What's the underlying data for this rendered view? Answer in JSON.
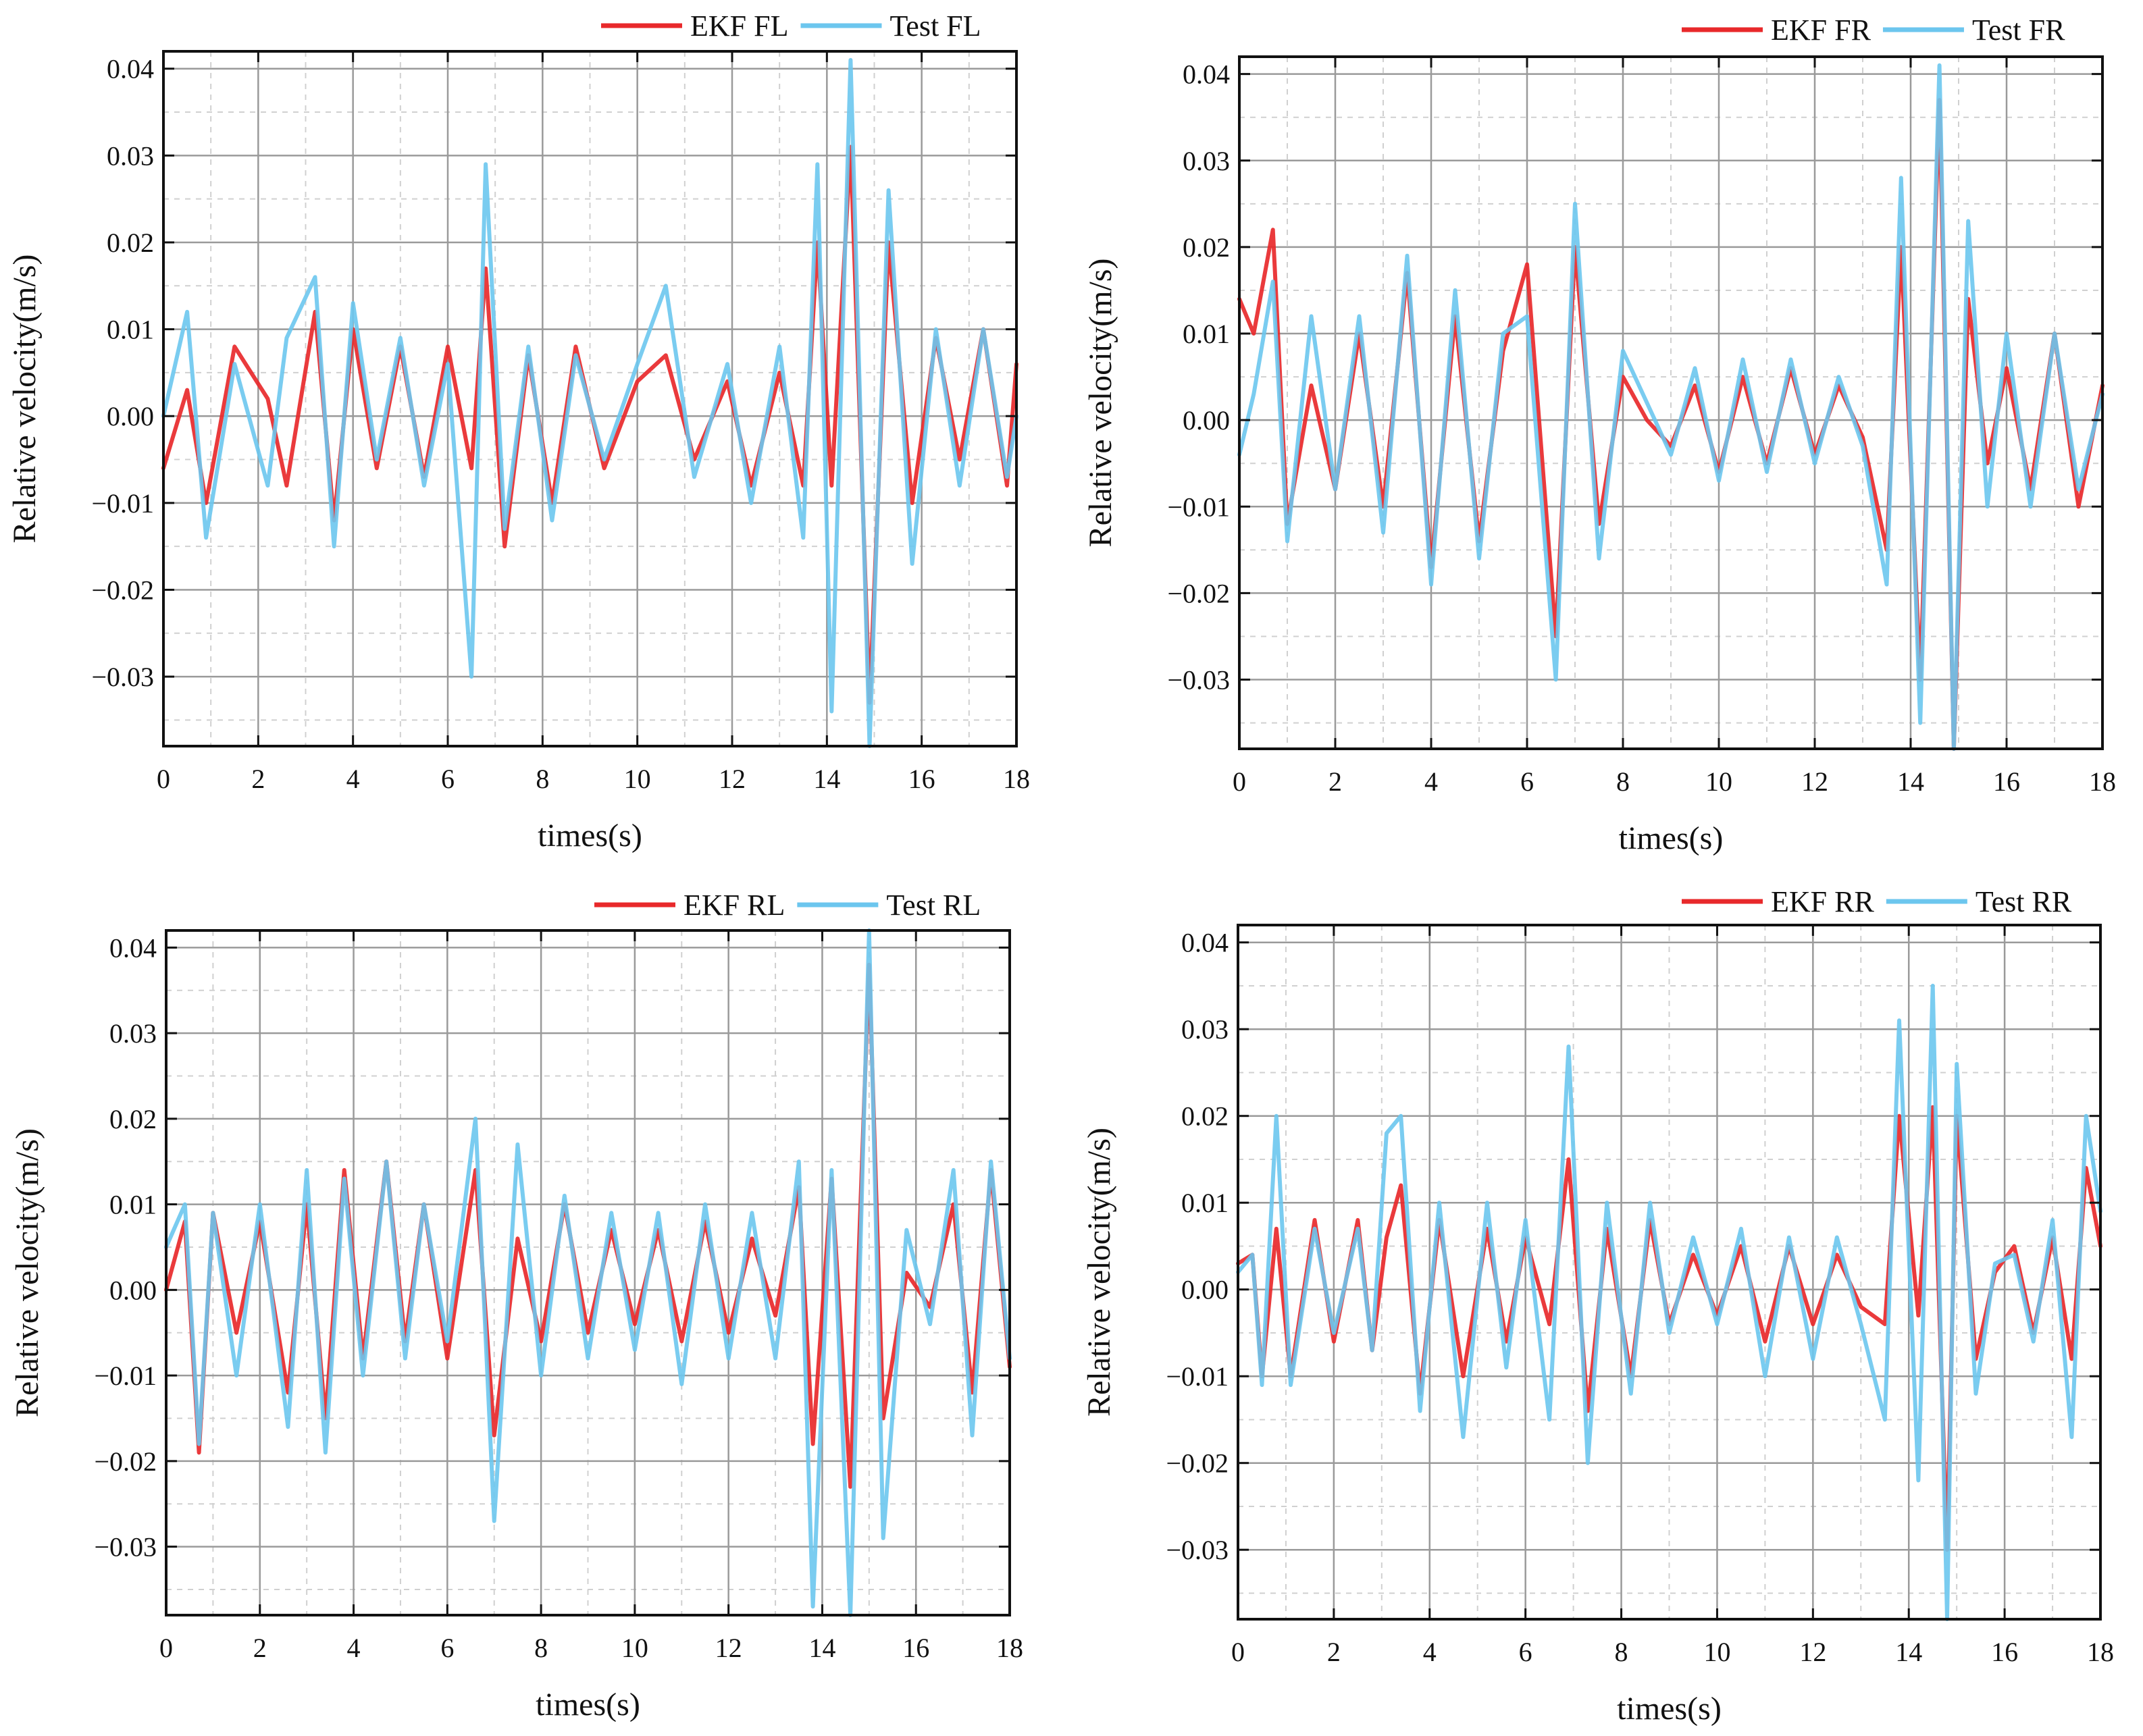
{
  "colors": {
    "ekf": "#e8292b",
    "test": "#6cc6ee",
    "axis": "#111111",
    "grid_major": "#9a9a9a",
    "grid_minor": "#d0d0d0"
  },
  "chart_data": [
    {
      "type": "line",
      "panel": "FL",
      "legend_position": "top-right",
      "xlabel": "times(s)",
      "ylabel": "Relative velocity(m/s)",
      "xlim": [
        0,
        18
      ],
      "ylim": [
        -0.038,
        0.042
      ],
      "xticks": [
        0,
        2,
        4,
        6,
        8,
        10,
        12,
        14,
        16,
        18
      ],
      "xtick_labels": [
        "0",
        "2",
        "4",
        "6",
        "8",
        "10",
        "12",
        "14",
        "16",
        "18"
      ],
      "yticks": [
        -0.03,
        -0.02,
        -0.01,
        0,
        0.01,
        0.02,
        0.03,
        0.04
      ],
      "ytick_labels": [
        "−0.03",
        "−0.02",
        "−0.01",
        "0.00",
        "0.01",
        "0.02",
        "0.03",
        "0.04"
      ],
      "x": [
        0,
        0.5,
        0.9,
        1.5,
        2.2,
        2.6,
        3.2,
        3.6,
        4.0,
        4.5,
        5.0,
        5.5,
        6.0,
        6.5,
        6.8,
        7.2,
        7.7,
        8.2,
        8.7,
        9.3,
        10.0,
        10.6,
        11.2,
        11.9,
        12.4,
        13.0,
        13.5,
        13.8,
        14.1,
        14.5,
        14.9,
        15.3,
        15.8,
        16.3,
        16.8,
        17.3,
        17.8,
        18.0
      ],
      "series": [
        {
          "name": "EKF FL",
          "color_key": "ekf",
          "values": [
            -0.006,
            0.003,
            -0.01,
            0.008,
            0.002,
            -0.008,
            0.012,
            -0.012,
            0.01,
            -0.006,
            0.008,
            -0.007,
            0.008,
            -0.006,
            0.017,
            -0.015,
            0.007,
            -0.01,
            0.008,
            -0.006,
            0.004,
            0.007,
            -0.005,
            0.004,
            -0.008,
            0.005,
            -0.008,
            0.02,
            -0.008,
            0.031,
            -0.033,
            0.02,
            -0.01,
            0.009,
            -0.005,
            0.01,
            -0.008,
            0.006
          ]
        },
        {
          "name": "Test FL",
          "color_key": "test",
          "values": [
            0.0,
            0.012,
            -0.014,
            0.006,
            -0.008,
            0.009,
            0.016,
            -0.015,
            0.013,
            -0.005,
            0.009,
            -0.008,
            0.006,
            -0.03,
            0.029,
            -0.013,
            0.008,
            -0.012,
            0.007,
            -0.005,
            0.006,
            0.015,
            -0.007,
            0.006,
            -0.01,
            0.008,
            -0.014,
            0.029,
            -0.034,
            0.041,
            -0.038,
            0.026,
            -0.017,
            0.01,
            -0.008,
            0.01,
            -0.007,
            0.0
          ]
        }
      ]
    },
    {
      "type": "line",
      "panel": "FR",
      "legend_position": "top-right",
      "xlabel": "times(s)",
      "ylabel": "Relative velocity(m/s)",
      "xlim": [
        0,
        18
      ],
      "ylim": [
        -0.038,
        0.042
      ],
      "xticks": [
        0,
        2,
        4,
        6,
        8,
        10,
        12,
        14,
        16,
        18
      ],
      "xtick_labels": [
        "0",
        "2",
        "4",
        "6",
        "8",
        "10",
        "12",
        "14",
        "16",
        "18"
      ],
      "yticks": [
        -0.03,
        -0.02,
        -0.01,
        0,
        0.01,
        0.02,
        0.03,
        0.04
      ],
      "ytick_labels": [
        "−0.03",
        "−0.02",
        "−0.01",
        "0.00",
        "0.01",
        "0.02",
        "0.03",
        "0.04"
      ],
      "x": [
        0,
        0.3,
        0.7,
        1.0,
        1.5,
        2.0,
        2.5,
        3.0,
        3.5,
        4.0,
        4.5,
        5.0,
        5.5,
        6.0,
        6.6,
        7.0,
        7.5,
        8.0,
        8.5,
        9.0,
        9.5,
        10.0,
        10.5,
        11.0,
        11.5,
        12.0,
        12.5,
        13.0,
        13.5,
        13.8,
        14.2,
        14.6,
        14.9,
        15.2,
        15.6,
        16.0,
        16.5,
        17.0,
        17.5,
        18.0
      ],
      "series": [
        {
          "name": "EKF FR",
          "color_key": "ekf",
          "values": [
            0.014,
            0.01,
            0.022,
            -0.012,
            0.004,
            -0.008,
            0.01,
            -0.01,
            0.017,
            -0.017,
            0.012,
            -0.014,
            0.008,
            0.018,
            -0.025,
            0.02,
            -0.012,
            0.005,
            0.0,
            -0.003,
            0.004,
            -0.006,
            0.005,
            -0.005,
            0.006,
            -0.004,
            0.004,
            -0.002,
            -0.015,
            0.02,
            -0.03,
            0.037,
            -0.038,
            0.014,
            -0.005,
            0.006,
            -0.008,
            0.01,
            -0.01,
            0.004
          ]
        },
        {
          "name": "Test FR",
          "color_key": "test",
          "values": [
            -0.004,
            0.003,
            0.016,
            -0.014,
            0.012,
            -0.008,
            0.012,
            -0.013,
            0.019,
            -0.019,
            0.015,
            -0.016,
            0.01,
            0.012,
            -0.03,
            0.025,
            -0.016,
            0.008,
            0.002,
            -0.004,
            0.006,
            -0.007,
            0.007,
            -0.006,
            0.007,
            -0.005,
            0.005,
            -0.003,
            -0.019,
            0.028,
            -0.035,
            0.041,
            -0.038,
            0.023,
            -0.01,
            0.01,
            -0.01,
            0.01,
            -0.008,
            0.003
          ]
        }
      ]
    },
    {
      "type": "line",
      "panel": "RL",
      "legend_position": "top-right",
      "xlabel": "times(s)",
      "ylabel": "Relative velocity(m/s)",
      "xlim": [
        0,
        18
      ],
      "ylim": [
        -0.038,
        0.042
      ],
      "xticks": [
        0,
        2,
        4,
        6,
        8,
        10,
        12,
        14,
        16,
        18
      ],
      "xtick_labels": [
        "0",
        "2",
        "4",
        "6",
        "8",
        "10",
        "12",
        "14",
        "16",
        "18"
      ],
      "yticks": [
        -0.03,
        -0.02,
        -0.01,
        0,
        0.01,
        0.02,
        0.03,
        0.04
      ],
      "ytick_labels": [
        "−0.03",
        "−0.02",
        "−0.01",
        "0.00",
        "0.01",
        "0.02",
        "0.03",
        "0.04"
      ],
      "x": [
        0,
        0.4,
        0.7,
        1.0,
        1.5,
        2.0,
        2.6,
        3.0,
        3.4,
        3.8,
        4.2,
        4.7,
        5.1,
        5.5,
        6.0,
        6.6,
        7.0,
        7.5,
        8.0,
        8.5,
        9.0,
        9.5,
        10.0,
        10.5,
        11.0,
        11.5,
        12.0,
        12.5,
        13.0,
        13.5,
        13.8,
        14.2,
        14.6,
        15.0,
        15.3,
        15.8,
        16.3,
        16.8,
        17.2,
        17.6,
        18.0
      ],
      "series": [
        {
          "name": "EKF RL",
          "color_key": "ekf",
          "values": [
            0.0,
            0.008,
            -0.019,
            0.009,
            -0.005,
            0.008,
            -0.012,
            0.01,
            -0.015,
            0.014,
            -0.008,
            0.015,
            -0.006,
            0.01,
            -0.008,
            0.014,
            -0.017,
            0.006,
            -0.006,
            0.01,
            -0.005,
            0.007,
            -0.004,
            0.007,
            -0.006,
            0.008,
            -0.005,
            0.006,
            -0.003,
            0.012,
            -0.018,
            0.013,
            -0.023,
            0.038,
            -0.015,
            0.002,
            -0.002,
            0.01,
            -0.012,
            0.014,
            -0.009
          ]
        },
        {
          "name": "Test RL",
          "color_key": "test",
          "values": [
            0.005,
            0.01,
            -0.018,
            0.009,
            -0.01,
            0.01,
            -0.016,
            0.014,
            -0.019,
            0.013,
            -0.01,
            0.015,
            -0.008,
            0.01,
            -0.006,
            0.02,
            -0.027,
            0.017,
            -0.01,
            0.011,
            -0.008,
            0.009,
            -0.007,
            0.009,
            -0.011,
            0.01,
            -0.008,
            0.009,
            -0.008,
            0.015,
            -0.037,
            0.014,
            -0.038,
            0.042,
            -0.029,
            0.007,
            -0.004,
            0.014,
            -0.017,
            0.015,
            -0.008
          ]
        }
      ]
    },
    {
      "type": "line",
      "panel": "RR",
      "legend_position": "top-right",
      "xlabel": "times(s)",
      "ylabel": "Relative velocity(m/s)",
      "xlim": [
        0,
        18
      ],
      "ylim": [
        -0.038,
        0.042
      ],
      "xticks": [
        0,
        2,
        4,
        6,
        8,
        10,
        12,
        14,
        16,
        18
      ],
      "xtick_labels": [
        "0",
        "2",
        "4",
        "6",
        "8",
        "10",
        "12",
        "14",
        "16",
        "18"
      ],
      "yticks": [
        -0.03,
        -0.02,
        -0.01,
        0,
        0.01,
        0.02,
        0.03,
        0.04
      ],
      "ytick_labels": [
        "−0.03",
        "−0.02",
        "−0.01",
        "0.00",
        "0.01",
        "0.02",
        "0.03",
        "0.04"
      ],
      "x": [
        0,
        0.3,
        0.5,
        0.8,
        1.1,
        1.6,
        2.0,
        2.5,
        2.8,
        3.1,
        3.4,
        3.8,
        4.2,
        4.7,
        5.2,
        5.6,
        6.0,
        6.5,
        6.9,
        7.3,
        7.7,
        8.2,
        8.6,
        9.0,
        9.5,
        10.0,
        10.5,
        11.0,
        11.5,
        12.0,
        12.5,
        13.0,
        13.5,
        13.8,
        14.2,
        14.5,
        14.8,
        15.0,
        15.4,
        15.8,
        16.2,
        16.6,
        17.0,
        17.4,
        17.7,
        18.0
      ],
      "series": [
        {
          "name": "EKF RR",
          "color_key": "ekf",
          "values": [
            0.003,
            0.004,
            -0.01,
            0.007,
            -0.01,
            0.008,
            -0.006,
            0.008,
            -0.007,
            0.006,
            0.012,
            -0.012,
            0.008,
            -0.01,
            0.007,
            -0.006,
            0.006,
            -0.004,
            0.015,
            -0.014,
            0.007,
            -0.01,
            0.008,
            -0.004,
            0.004,
            -0.003,
            0.005,
            -0.006,
            0.005,
            -0.004,
            0.004,
            -0.002,
            -0.004,
            0.02,
            -0.003,
            0.021,
            -0.03,
            0.02,
            -0.008,
            0.002,
            0.005,
            -0.005,
            0.006,
            -0.008,
            0.014,
            0.005
          ]
        },
        {
          "name": "Test RR",
          "color_key": "test",
          "values": [
            0.002,
            0.004,
            -0.011,
            0.02,
            -0.011,
            0.007,
            -0.005,
            0.007,
            -0.007,
            0.018,
            0.02,
            -0.014,
            0.01,
            -0.017,
            0.01,
            -0.009,
            0.008,
            -0.015,
            0.028,
            -0.02,
            0.01,
            -0.012,
            0.01,
            -0.005,
            0.006,
            -0.004,
            0.007,
            -0.01,
            0.006,
            -0.008,
            0.006,
            -0.004,
            -0.015,
            0.031,
            -0.022,
            0.035,
            -0.038,
            0.026,
            -0.012,
            0.003,
            0.004,
            -0.006,
            0.008,
            -0.017,
            0.02,
            0.009
          ]
        }
      ]
    }
  ]
}
